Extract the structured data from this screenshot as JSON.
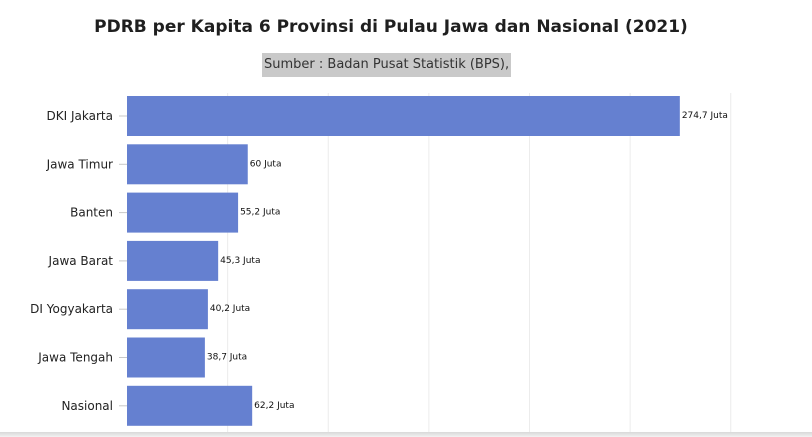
{
  "chart_data": {
    "type": "bar",
    "orientation": "horizontal",
    "title": "PDRB per Kapita 6 Provinsi di Pulau Jawa dan Nasional (2021)",
    "subtitle": "Sumber : Badan Pusat Statistik (BPS),",
    "categories": [
      "DKI Jakarta",
      "Jawa Timur",
      "Banten",
      "Jawa Barat",
      "DI Yogyakarta",
      "Jawa Tengah",
      "Nasional"
    ],
    "values": [
      274.7,
      60,
      55.2,
      45.3,
      40.2,
      38.7,
      62.2
    ],
    "data_labels": [
      "274,7 Juta",
      "60 Juta",
      "55,2 Juta",
      "45,3 Juta",
      "40,2 Juta",
      "38,7 Juta",
      "62,2 Juta"
    ],
    "xlim": [
      0,
      300
    ],
    "grid": true,
    "bar_color": "#6580d0",
    "grid_color": "#ececec"
  }
}
